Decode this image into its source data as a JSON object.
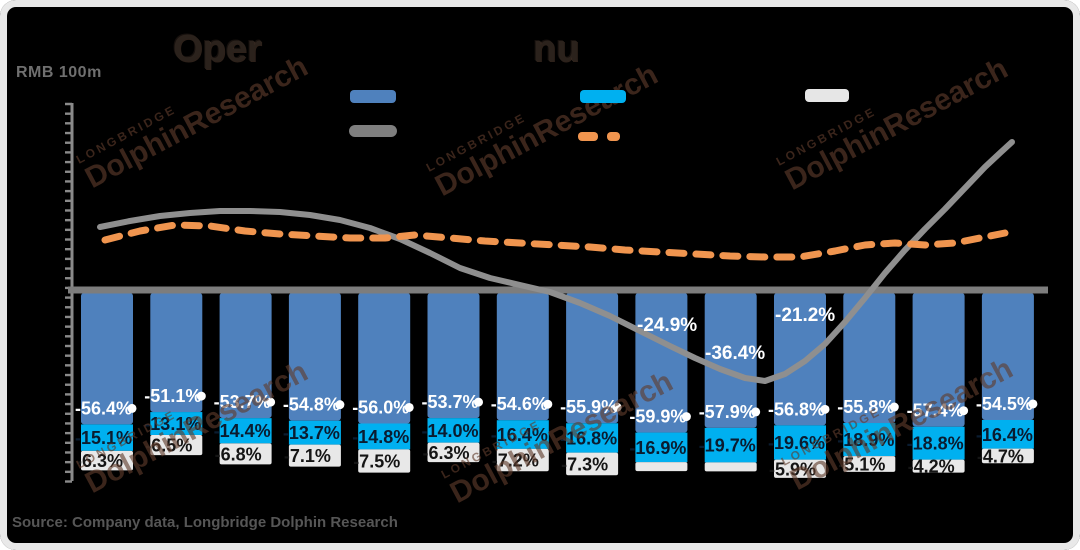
{
  "frame": {
    "unit_label": "RMB 100m",
    "source_note": "Source: Company data, Longbridge Dolphin Research",
    "title_fragments": [
      "Oper",
      "nu"
    ],
    "watermark": {
      "line1": "LONGBRIDGE",
      "line2": "DolphinResearch"
    },
    "background": "#000000",
    "border_color": "#e9e9e9"
  },
  "legend": {
    "labels_note": "legend label text is rendered in black and not legible against the dark background",
    "items": [
      {
        "name": "blue-bar",
        "shape": "bar",
        "color": "#4f81bd",
        "label": ""
      },
      {
        "name": "cyan-bar",
        "shape": "bar",
        "color": "#00b0f0",
        "label": ""
      },
      {
        "name": "white-bar",
        "shape": "bar",
        "color": "#e6e6e6",
        "label": ""
      },
      {
        "name": "gray-line",
        "shape": "line",
        "color": "#7f7f7f",
        "label": ""
      },
      {
        "name": "orange-dashed-line",
        "shape": "dashed-line",
        "color": "#f0954f",
        "label": ""
      }
    ]
  },
  "chart_data": {
    "type": "bar",
    "subtype": "stacked-bars-with-two-trend-lines",
    "bar_count": 14,
    "x_labels_visible": false,
    "y_tick_labels_visible": false,
    "zero_line": true,
    "y_tick_count": 40,
    "bar_series": [
      {
        "name": "blue-segment",
        "color": "#4f81bd",
        "labels": [
          "-56.4%",
          "-51.1%",
          "-53.7%",
          "-54.8%",
          "-56.0%",
          "-53.7%",
          "-54.6%",
          "-55.9%",
          "-59.9%",
          "-57.9%",
          "-56.8%",
          "-55.8%",
          "-57.4%",
          "-54.5%"
        ]
      },
      {
        "name": "cyan-segment",
        "color": "#00b0f0",
        "labels": [
          "-15.1%",
          "-13.1%",
          "-14.4%",
          "-13.7%",
          "-14.8%",
          "-14.0%",
          "-16.4%",
          "-16.8%",
          "-16.9%",
          "-19.7%",
          "-19.6%",
          "-18.9%",
          "-18.8%",
          "-16.4%"
        ]
      },
      {
        "name": "light-segment",
        "color": "#e8e8e8",
        "labels": [
          "-6.3%",
          "-6.5%",
          "-6.8%",
          "-7.1%",
          "-7.5%",
          "-6.3%",
          "-7.2%",
          "-7.3%",
          "",
          "",
          "-5.9%",
          "-5.1%",
          "-4.2%",
          "-4.7%"
        ]
      }
    ],
    "line_series": [
      {
        "name": "gray-solid-line",
        "color": "#8f8f8f",
        "style": "solid",
        "description": "flat near top-left, dips below zero mid-chart, trough near bars 10-11, steep rise at right",
        "point_labels": [
          {
            "bar_index": 9,
            "label": "-24.9%"
          },
          {
            "bar_index": 10,
            "label": "-36.4%"
          },
          {
            "bar_index": 11,
            "label": "-21.2%"
          }
        ]
      },
      {
        "name": "orange-dashed-line",
        "color": "#f0954f",
        "style": "dashed",
        "description": "gently wavy line slightly above the zero axis across the full width",
        "point_labels": []
      }
    ]
  }
}
